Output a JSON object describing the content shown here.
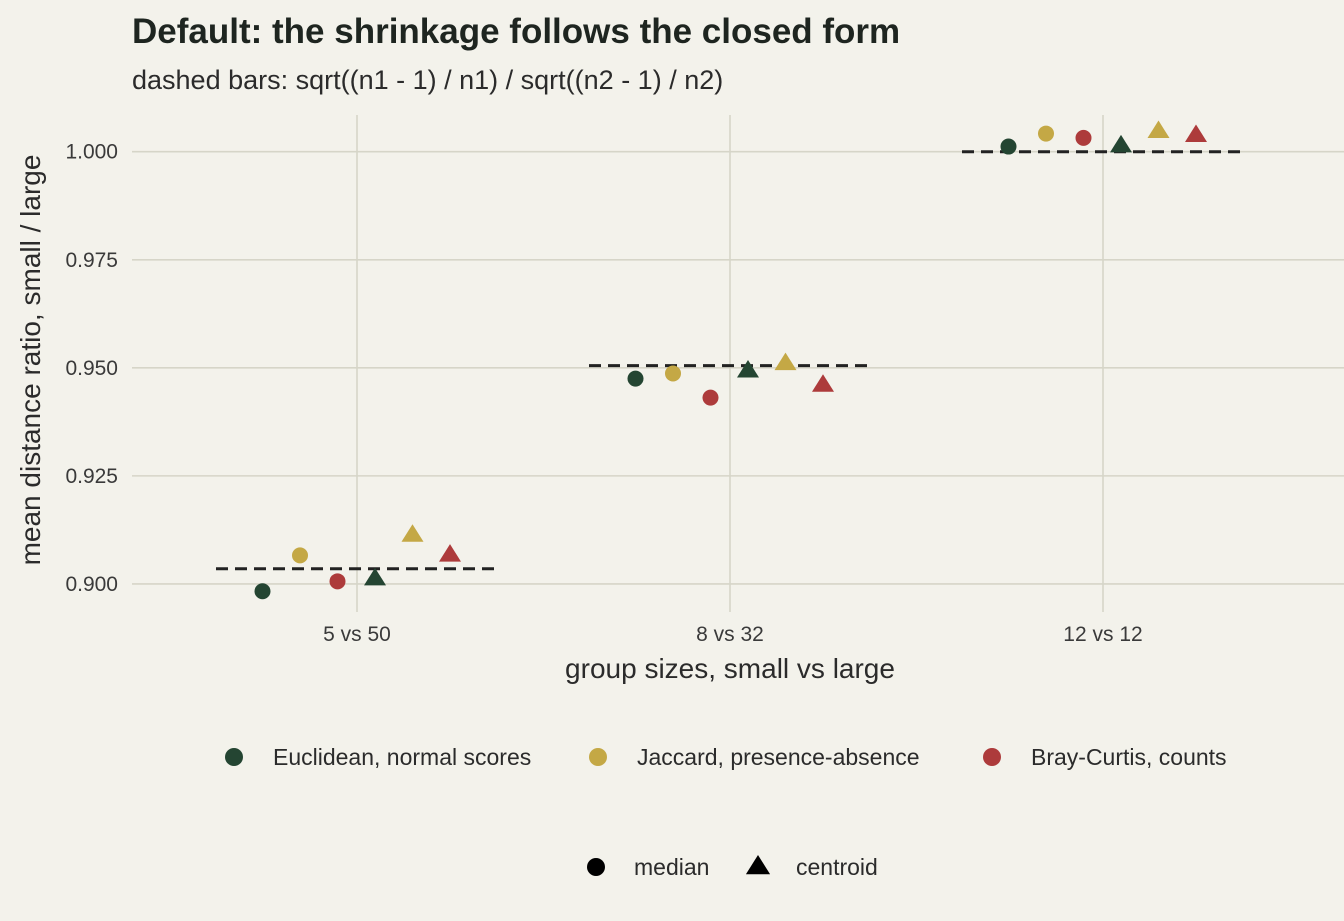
{
  "chart_data": {
    "type": "scatter",
    "title": "Default: the shrinkage follows the closed form",
    "subtitle": "dashed bars: sqrt((n1 - 1) / n1) / sqrt((n2 - 1) / n2)",
    "xlabel": "group sizes, small vs large",
    "ylabel": "mean distance ratio, small / large",
    "categories": [
      "5 vs 50",
      "8 vs 32",
      "12 vs 12"
    ],
    "ylim": [
      0.8935,
      1.0085
    ],
    "yticks": [
      0.9,
      0.925,
      0.95,
      0.975,
      1.0
    ],
    "ytick_labels": [
      "0.900",
      "0.925",
      "0.950",
      "0.975",
      "1.000"
    ],
    "grid": true,
    "legend_position": "bottom",
    "reference": {
      "style": "dashed",
      "values": [
        0.9035,
        0.9505,
        1.0
      ]
    },
    "series": [
      {
        "name": "Euclidean, normal scores",
        "color": "#244532",
        "median": [
          0.8983,
          0.9475,
          1.0012
        ],
        "centroid": [
          0.9014,
          0.9495,
          1.0016
        ]
      },
      {
        "name": "Jaccard, presence-absence",
        "color": "#c4a845",
        "median": [
          0.9066,
          0.9487,
          1.0042
        ],
        "centroid": [
          0.9115,
          0.9512,
          1.0049
        ]
      },
      {
        "name": "Bray-Curtis, counts",
        "color": "#ad3b3b",
        "median": [
          0.9006,
          0.9431,
          1.0032
        ],
        "centroid": [
          0.9069,
          0.9462,
          1.004
        ]
      }
    ],
    "shape_legend": [
      {
        "label": "median",
        "shape": "circle"
      },
      {
        "label": "centroid",
        "shape": "triangle"
      }
    ]
  }
}
